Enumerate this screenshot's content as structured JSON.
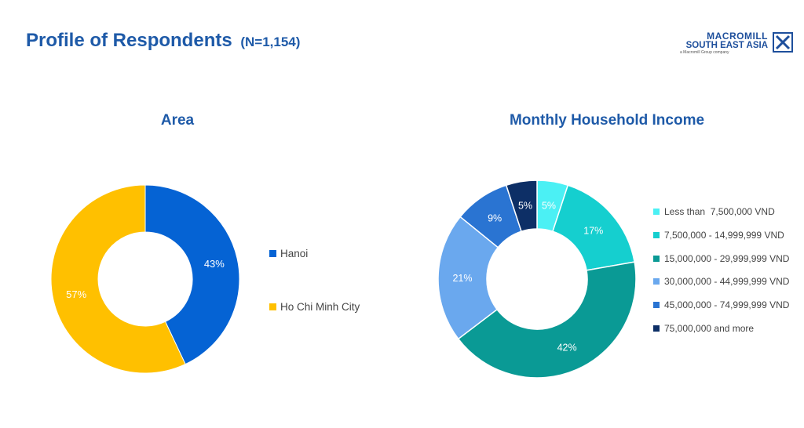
{
  "header": {
    "title": "Profile of Respondents",
    "sample": "(N=1,154)"
  },
  "logo": {
    "line1": "MACROMILL",
    "line2": "SOUTH EAST ASIA",
    "line3": "a Macromill Group company"
  },
  "colors": {
    "title": "#1e5aa8",
    "hanoi": "#0563d4",
    "hcmc": "#ffc000",
    "inc1": "#4bf0f4",
    "inc2": "#15cfcf",
    "inc3": "#0a9a95",
    "inc4": "#6aa8ee",
    "inc5": "#2a74d2",
    "inc6": "#0d2f66"
  },
  "chart_data": [
    {
      "type": "pie",
      "title": "Area",
      "donut": true,
      "categories": [
        "Hanoi",
        "Ho Chi Minh City"
      ],
      "values": [
        43,
        57
      ],
      "labels": [
        "43%",
        "57%"
      ],
      "legend_position": "right"
    },
    {
      "type": "pie",
      "title": "Monthly Household Income",
      "donut": true,
      "categories": [
        "Less than  7,500,000 VND",
        "7,500,000 - 14,999,999 VND",
        "15,000,000 - 29,999,999 VND",
        "30,000,000 - 44,999,999 VND",
        "45,000,000 - 74,999,999 VND",
        "75,000,000 and more"
      ],
      "values": [
        5,
        17,
        42,
        21,
        9,
        5
      ],
      "labels": [
        "5%",
        "17%",
        "42%",
        "21%",
        "9%",
        "5%"
      ],
      "legend_position": "right"
    }
  ]
}
